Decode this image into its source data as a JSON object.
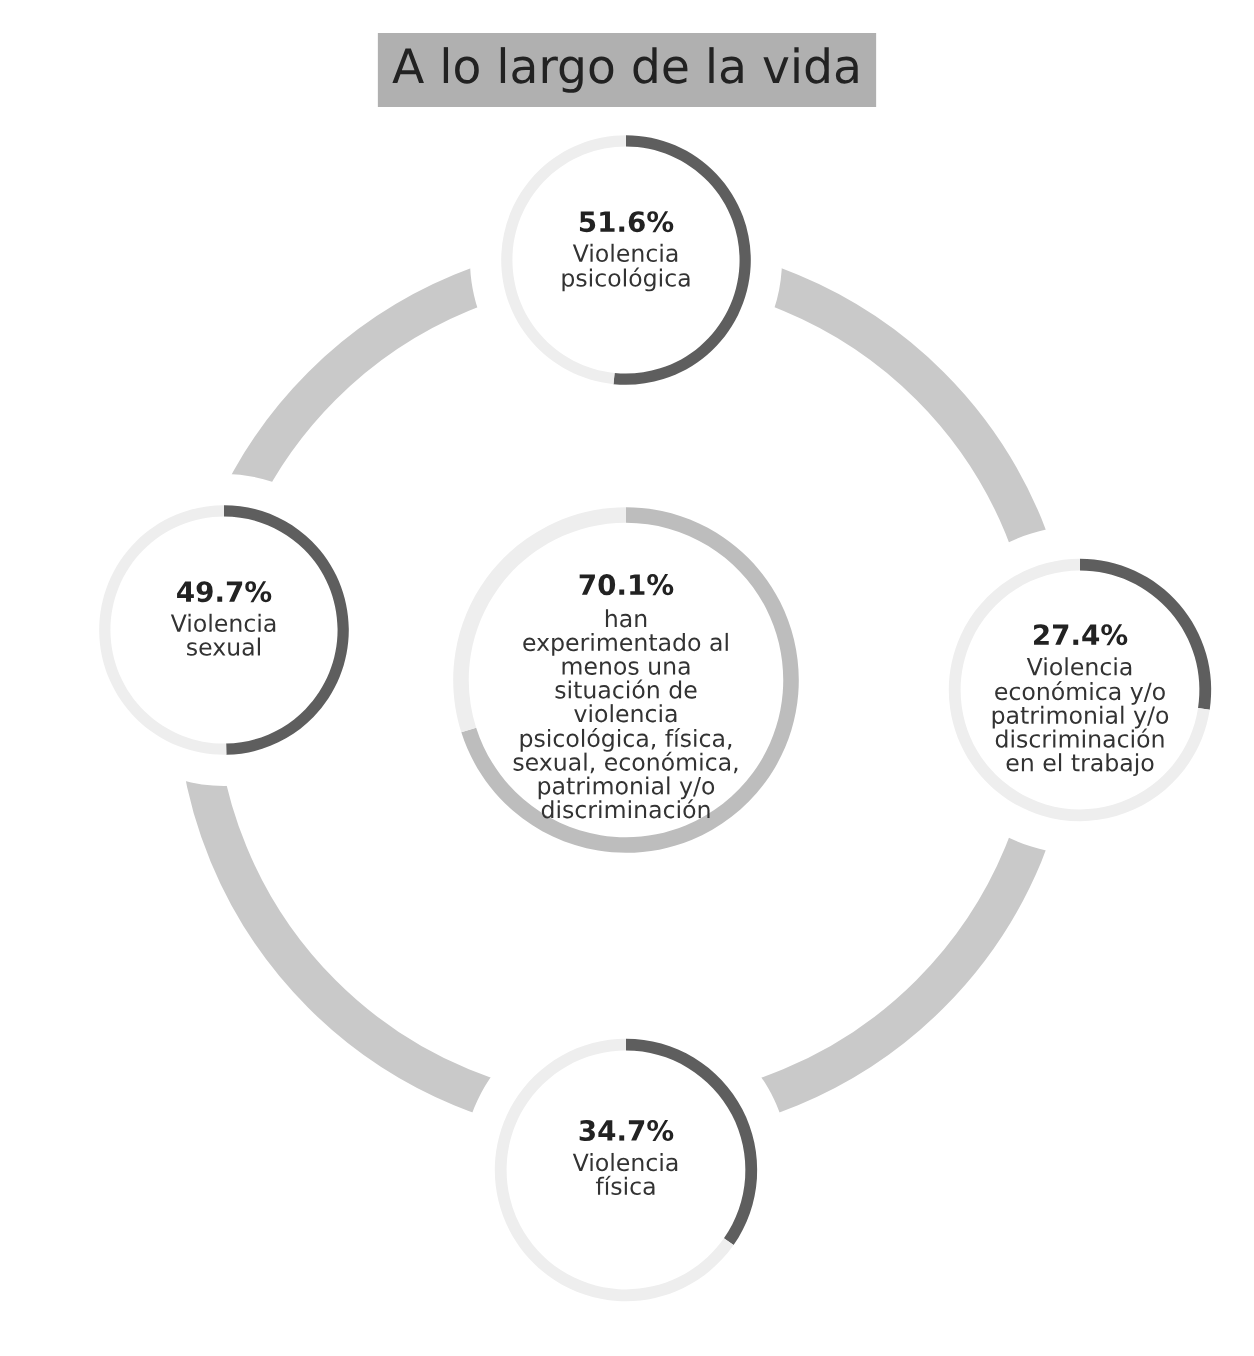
{
  "chart_data": [
    {
      "type": "other",
      "title": "A lo largo de la vida"
    },
    {
      "type": "donut",
      "categories": [
        "Violencia\npsicológica",
        null
      ],
      "values": [
        51.6,
        48.4
      ],
      "colors": [
        "#5e5e5e",
        "#eeeeee"
      ],
      "value_labels": [
        "51.6%",
        null
      ]
    },
    {
      "type": "donut",
      "categories": [
        "Violencia\nsexual",
        null
      ],
      "values": [
        49.7,
        50.3
      ],
      "colors": [
        "#5e5e5e",
        "#eeeeee"
      ],
      "value_labels": [
        "49.7%",
        null
      ]
    },
    {
      "type": "donut",
      "categories": [
        "han\nexperimentado al\nmenos una\nsituación de\nviolencia\npsicológica, física,\nsexual, económica,\npatrimonial y/o\ndiscriminación",
        null
      ],
      "values": [
        70.1,
        29.9
      ],
      "colors": [
        "#bdbdbd",
        "#eeeeee"
      ],
      "value_labels": [
        "70.1%",
        null
      ]
    },
    {
      "type": "donut",
      "categories": [
        "Violencia\neconómica y/o\npatrimonial y/o\ndiscriminación\nen el trabajo",
        null
      ],
      "values": [
        27.4,
        72.6
      ],
      "colors": [
        "#5e5e5e",
        "#eeeeee"
      ],
      "value_labels": [
        "27.4%",
        null
      ]
    },
    {
      "type": "donut",
      "categories": [
        "Violencia\nfísica",
        null
      ],
      "values": [
        34.7,
        65.3
      ],
      "colors": [
        "#5e5e5e",
        "#eeeeee"
      ],
      "value_labels": [
        "34.7%",
        null
      ]
    }
  ]
}
